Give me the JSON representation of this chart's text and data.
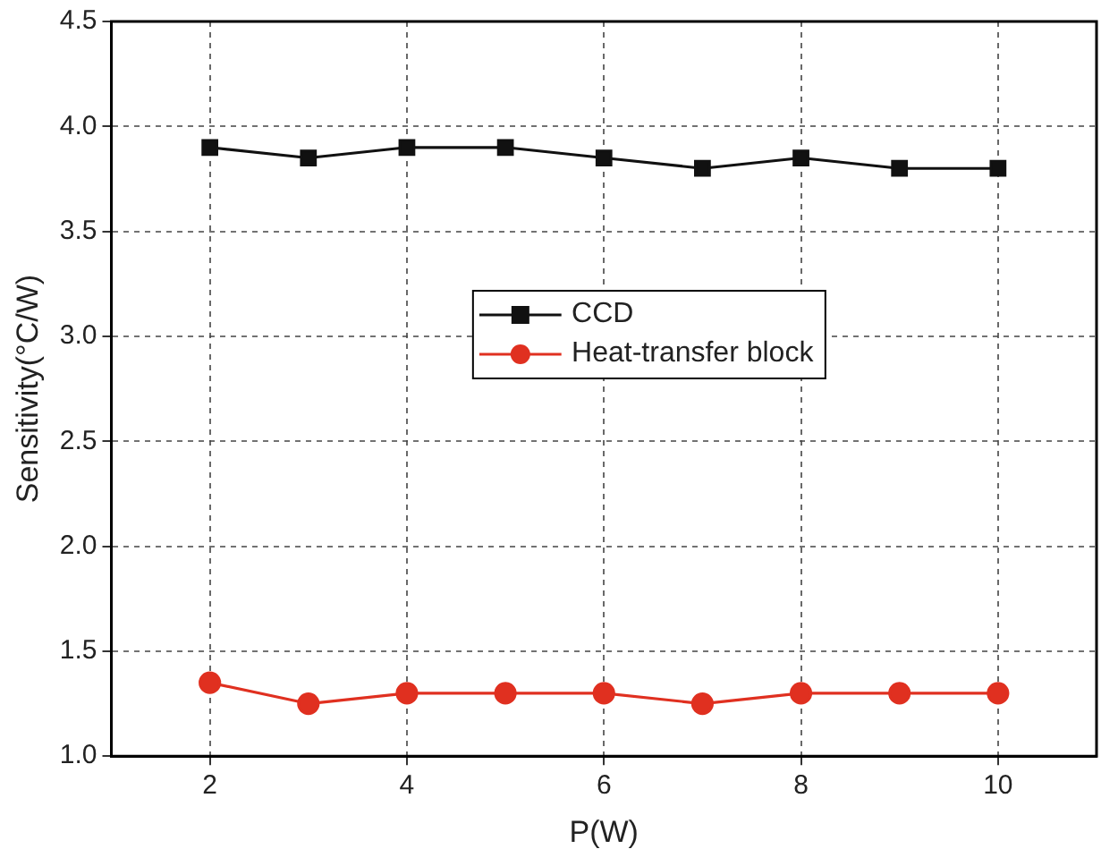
{
  "chart_data": {
    "type": "line",
    "xlabel": "P(W)",
    "ylabel": "Sensitivity(°C/W)",
    "x": [
      2,
      3,
      4,
      5,
      6,
      7,
      8,
      9,
      10
    ],
    "series": [
      {
        "name": "CCD",
        "color": "#111111",
        "marker": "square",
        "values": [
          3.9,
          3.85,
          3.9,
          3.9,
          3.85,
          3.8,
          3.85,
          3.8,
          3.8
        ]
      },
      {
        "name": "Heat-transfer block",
        "color": "#e03020",
        "marker": "circle",
        "values": [
          1.35,
          1.25,
          1.3,
          1.3,
          1.3,
          1.25,
          1.3,
          1.3,
          1.3
        ]
      }
    ],
    "xlim": [
      1,
      11
    ],
    "xticks": [
      2,
      4,
      6,
      8,
      10
    ],
    "ylim": [
      1,
      4.5
    ],
    "yticks": [
      {
        "value": 1,
        "label": "1.0"
      },
      {
        "value": 1.5,
        "label": "1.5"
      },
      {
        "value": 2,
        "label": "2.0"
      },
      {
        "value": 2.5,
        "label": "2.5"
      },
      {
        "value": 3,
        "label": "3.0"
      },
      {
        "value": 3.5,
        "label": "3.5"
      },
      {
        "value": 4,
        "label": "4.0"
      },
      {
        "value": 4.5,
        "label": "4.5"
      }
    ],
    "grid": true,
    "legend": "center"
  }
}
